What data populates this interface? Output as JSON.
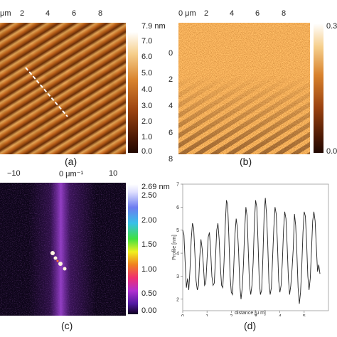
{
  "panel_a": {
    "caption": "(a)",
    "axis_top_unit": "μm",
    "axis_top_ticks": [
      "2",
      "4",
      "6",
      "8"
    ],
    "colorbar_max_label": "7.9 nm",
    "colorbar_ticks": [
      "7.0",
      "6.0",
      "5.0",
      "4.0",
      "3.0",
      "2.0",
      "1.0",
      "0.0"
    ],
    "colors": {
      "low": "#2a0f04",
      "mid": "#c8641c",
      "high": "#ffffff"
    }
  },
  "panel_b": {
    "caption": "(b)",
    "axis_top_unit": "0 μm",
    "axis_top_ticks": [
      "2",
      "4",
      "6",
      "8"
    ],
    "axis_left_ticks": [
      "0",
      "2",
      "4",
      "6",
      "8"
    ],
    "colorbar_max_label": "0.3",
    "colorbar_min_label": "0.0",
    "colors": {
      "low": "#2a0f04",
      "mid": "#c8641c",
      "high": "#ffffff"
    }
  },
  "panel_c": {
    "caption": "(c)",
    "axis_top_ticks": [
      "−10",
      "0 μm⁻¹",
      "10"
    ],
    "colorbar_max_label": "2.69 nm",
    "colorbar_ticks": [
      "2.50",
      "2.00",
      "1.50",
      "1.00",
      "0.50",
      "0.00"
    ],
    "colors": {
      "bg": "#0c0418",
      "band": "#8a2fc8",
      "spot": "#fff4e0"
    }
  },
  "panel_d": {
    "caption": "(d)",
    "chart_data": {
      "type": "line",
      "xlabel": "distance [μ m]",
      "ylabel": "Profile [nm]",
      "xlim": [
        0,
        6
      ],
      "ylim": [
        1.5,
        7
      ],
      "x_ticks": [
        "0",
        "1",
        "2",
        "3",
        "4",
        "5"
      ],
      "y_ticks": [
        "2",
        "3",
        "4",
        "5",
        "6",
        "7"
      ],
      "series": [
        {
          "x": [
            0,
            0.05,
            0.1,
            0.15,
            0.2,
            0.25,
            0.3,
            0.35,
            0.4,
            0.45,
            0.5,
            0.55,
            0.6,
            0.65,
            0.7,
            0.75,
            0.8,
            0.85,
            0.9,
            0.95,
            1.0,
            1.05,
            1.1,
            1.15,
            1.2,
            1.25,
            1.3,
            1.35,
            1.4,
            1.45,
            1.5,
            1.55,
            1.6,
            1.65,
            1.7,
            1.75,
            1.8,
            1.85,
            1.9,
            1.95,
            2.0,
            2.05,
            2.1,
            2.15,
            2.2,
            2.25,
            2.3,
            2.35,
            2.4,
            2.45,
            2.5,
            2.55,
            2.6,
            2.65,
            2.7,
            2.75,
            2.8,
            2.85,
            2.9,
            2.95,
            3.0,
            3.05,
            3.1,
            3.15,
            3.2,
            3.25,
            3.3,
            3.35,
            3.4,
            3.45,
            3.5,
            3.55,
            3.6,
            3.65,
            3.7,
            3.75,
            3.8,
            3.85,
            3.9,
            3.95,
            4.0,
            4.05,
            4.1,
            4.15,
            4.2,
            4.25,
            4.3,
            4.35,
            4.4,
            4.45,
            4.5,
            4.55,
            4.6,
            4.65,
            4.7,
            4.75,
            4.8,
            4.85,
            4.9,
            4.95,
            5.0,
            5.05,
            5.1,
            5.15,
            5.2,
            5.25,
            5.3,
            5.35,
            5.4,
            5.45,
            5.5,
            5.55,
            5.6,
            5.65
          ],
          "values": [
            5.0,
            4.8,
            3.6,
            2.5,
            2.9,
            2.4,
            3.3,
            4.6,
            5.3,
            5.1,
            4.0,
            2.8,
            2.4,
            2.6,
            3.8,
            4.6,
            4.2,
            3.5,
            2.6,
            2.7,
            3.7,
            4.7,
            4.9,
            4.1,
            3.0,
            2.6,
            2.7,
            3.8,
            5.0,
            5.3,
            4.6,
            3.4,
            2.6,
            2.5,
            3.6,
            5.2,
            6.3,
            6.1,
            4.7,
            3.0,
            2.3,
            2.2,
            3.4,
            4.8,
            5.5,
            5.1,
            4.1,
            2.6,
            2.0,
            2.5,
            3.5,
            5.0,
            6.0,
            5.6,
            4.1,
            2.6,
            2.2,
            2.6,
            3.6,
            5.3,
            6.3,
            6.0,
            4.5,
            2.8,
            2.2,
            2.4,
            3.8,
            5.6,
            6.4,
            5.7,
            4.4,
            2.7,
            2.2,
            2.5,
            3.8,
            5.1,
            6.0,
            5.7,
            4.4,
            2.8,
            2.3,
            2.6,
            3.6,
            5.0,
            5.8,
            5.5,
            4.3,
            2.9,
            2.2,
            2.6,
            3.3,
            4.2,
            5.7,
            5.2,
            4.0,
            2.5,
            1.8,
            2.3,
            3.4,
            4.9,
            5.8,
            5.6,
            4.5,
            3.0,
            2.4,
            2.9,
            4.1,
            5.4,
            5.8,
            5.4,
            4.3,
            3.2,
            3.5,
            3.1
          ]
        }
      ]
    }
  }
}
